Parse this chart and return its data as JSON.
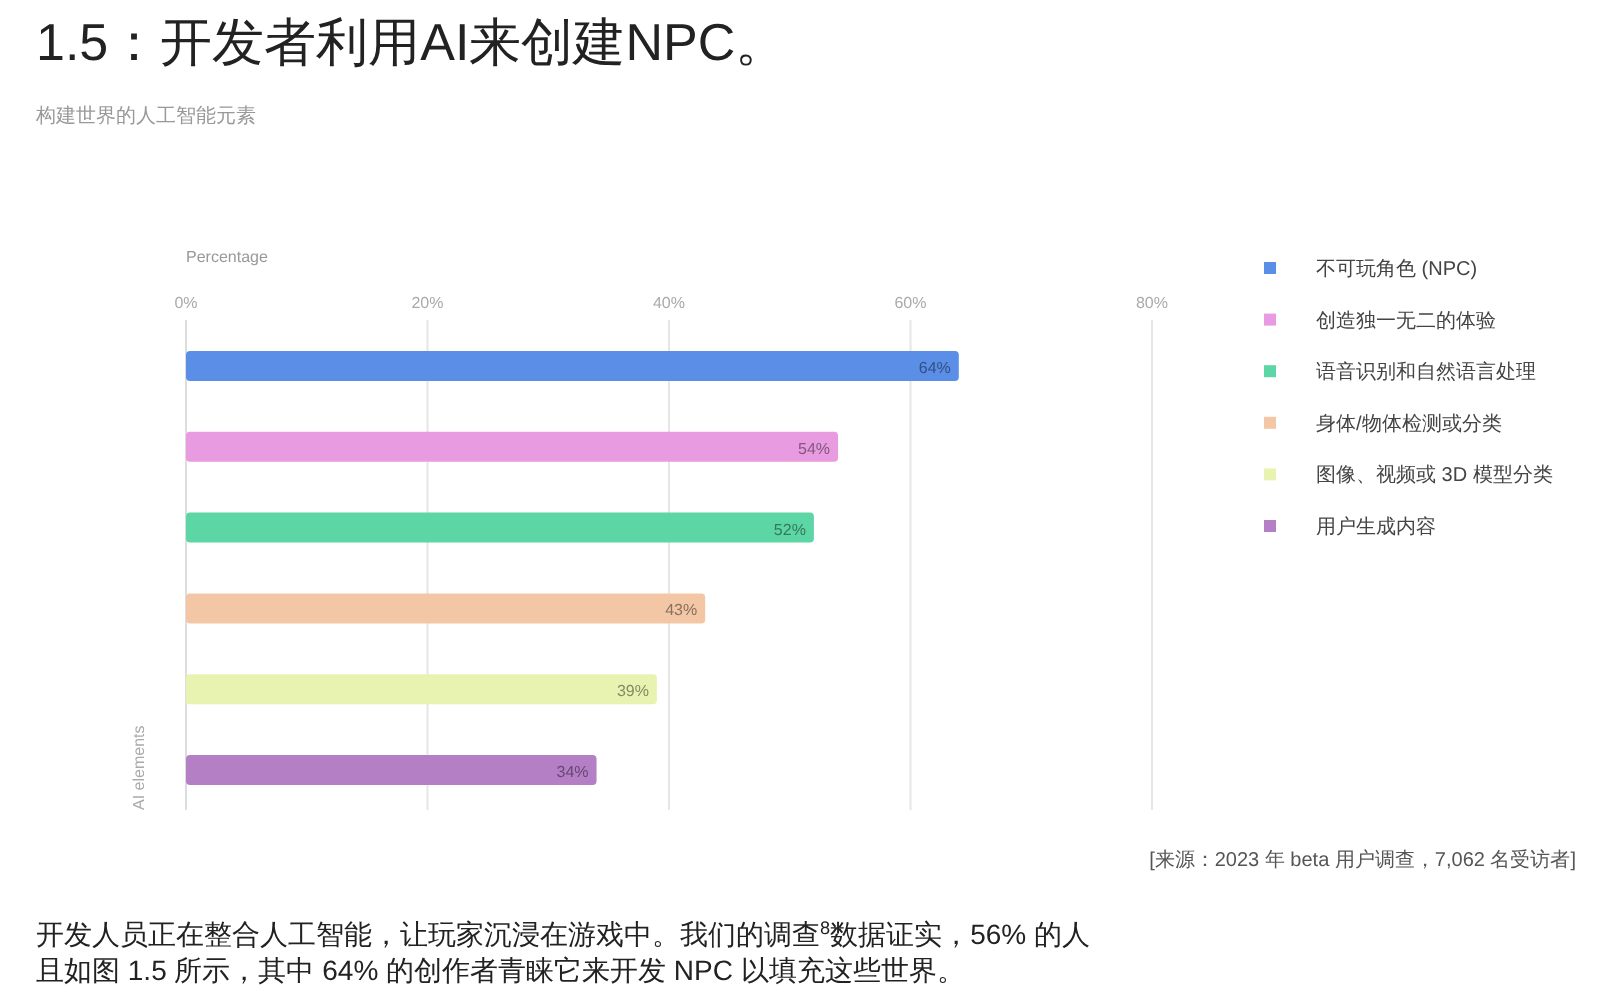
{
  "chart_data": {
    "type": "bar",
    "orientation": "horizontal",
    "title": "1.5：开发者利用AI来创建NPC。",
    "subtitle": "构建世界的人工智能元素",
    "xlabel": "Percentage",
    "ylabel": "AI elements",
    "categories": [
      null,
      null,
      null,
      null,
      null,
      null
    ],
    "series": [
      {
        "name": "不可玩角色 (NPC)",
        "color": "#5b8ee6",
        "values": [
          64,
          null,
          null,
          null,
          null,
          null
        ],
        "value_labels": [
          "64%",
          null,
          null,
          null,
          null,
          null
        ]
      },
      {
        "name": "创造独一无二的体验",
        "color": "#e89be0",
        "values": [
          null,
          54,
          null,
          null,
          null,
          null
        ],
        "value_labels": [
          null,
          "54%",
          null,
          null,
          null,
          null
        ]
      },
      {
        "name": "语音识别和自然语言处理",
        "color": "#5dd6a5",
        "values": [
          null,
          null,
          52,
          null,
          null,
          null
        ],
        "value_labels": [
          null,
          null,
          "52%",
          null,
          null,
          null
        ]
      },
      {
        "name": "身体/物体检测或分类",
        "color": "#f3c7a6",
        "values": [
          null,
          null,
          null,
          43,
          null,
          null
        ],
        "value_labels": [
          null,
          null,
          null,
          "43%",
          null,
          null
        ]
      },
      {
        "name": "图像、视频或 3D 模型分类",
        "color": "#e9f3b1",
        "values": [
          null,
          null,
          null,
          null,
          39,
          null
        ],
        "value_labels": [
          null,
          null,
          null,
          null,
          "39%",
          null
        ]
      },
      {
        "name": "用户生成内容",
        "color": "#b57fc6",
        "values": [
          null,
          null,
          null,
          null,
          null,
          34
        ],
        "value_labels": [
          null,
          null,
          null,
          null,
          null,
          "34%"
        ]
      }
    ],
    "xlim": [
      0,
      80
    ],
    "xticks": [
      {
        "value": 0,
        "label": "0%"
      },
      {
        "value": 20,
        "label": "20%"
      },
      {
        "value": 40,
        "label": "40%"
      },
      {
        "value": 60,
        "label": "60%"
      },
      {
        "value": 80,
        "label": "80%"
      }
    ],
    "grid": "x",
    "legend": "right",
    "annotations": [
      "[来源：2023 年 beta 用户调查，7,062 名受访者]",
      "开发人员正在整合人工智能，让玩家沉浸在游戏中。我们的调查$^{8}$数据证实，56% 的人",
      "且如图 1.5 所示，其中 64% 的创作者青睐它来开发 NPC 以填充这些世界。"
    ]
  }
}
